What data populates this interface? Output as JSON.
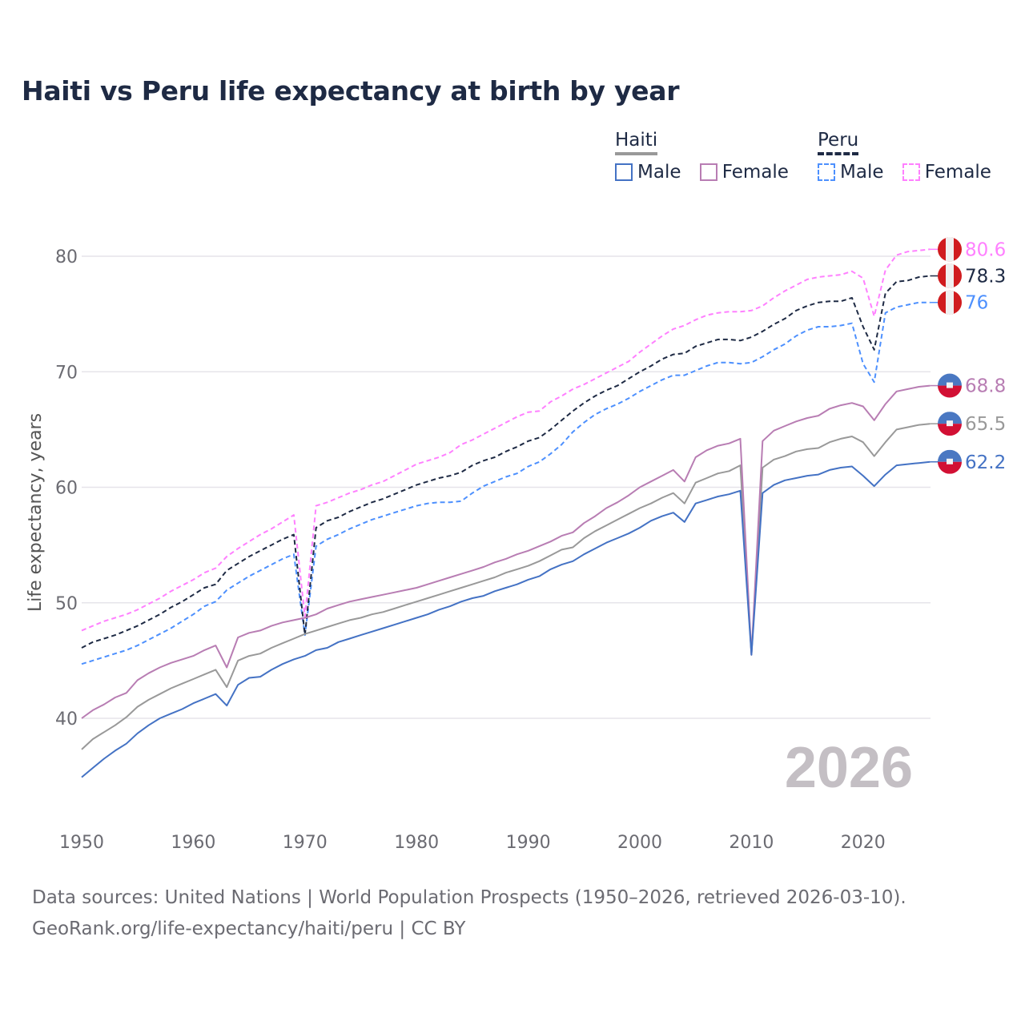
{
  "chart_data": {
    "type": "line",
    "title": "Haiti vs Peru life expectancy at birth by year",
    "xlabel": "",
    "ylabel": "Life expectancy, years",
    "xlim": [
      1950,
      2026
    ],
    "ylim": [
      34,
      82
    ],
    "x_ticks": [
      1950,
      1960,
      1970,
      1980,
      1990,
      2000,
      2010,
      2020
    ],
    "y_ticks": [
      40,
      50,
      60,
      70,
      80
    ],
    "grid": true,
    "legend_position": "top-right",
    "year_watermark": "2026",
    "x_start": 1950,
    "legend": {
      "groups": [
        {
          "name": "Haiti",
          "color": "#999999",
          "dashed": false,
          "items": [
            {
              "label": "Male",
              "color": "#4472c4"
            },
            {
              "label": "Female",
              "color": "#b87db3"
            }
          ]
        },
        {
          "name": "Peru",
          "color": "#1e2a44",
          "dashed": true,
          "items": [
            {
              "label": "Male",
              "color": "#4d90fe"
            },
            {
              "label": "Female",
              "color": "#ff80ff"
            }
          ]
        }
      ]
    },
    "series": [
      {
        "name": "Haiti Male",
        "country": "haiti",
        "color": "#4472c4",
        "dashed": false,
        "end_label": "62.2",
        "values": [
          34.9,
          35.7,
          36.5,
          37.2,
          37.8,
          38.7,
          39.4,
          40.0,
          40.4,
          40.8,
          41.3,
          41.7,
          42.1,
          41.1,
          42.9,
          43.5,
          43.6,
          44.2,
          44.7,
          45.1,
          45.4,
          45.9,
          46.1,
          46.6,
          46.9,
          47.2,
          47.5,
          47.8,
          48.1,
          48.4,
          48.7,
          49.0,
          49.4,
          49.7,
          50.1,
          50.4,
          50.6,
          51.0,
          51.3,
          51.6,
          52.0,
          52.3,
          52.9,
          53.3,
          53.6,
          54.2,
          54.7,
          55.2,
          55.6,
          56.0,
          56.5,
          57.1,
          57.5,
          57.8,
          57.0,
          58.6,
          58.9,
          59.2,
          59.4,
          59.7,
          45.5,
          59.5,
          60.2,
          60.6,
          60.8,
          61.0,
          61.1,
          61.5,
          61.7,
          61.8,
          61.0,
          60.1,
          61.1,
          61.9,
          62.0,
          62.1,
          62.2
        ]
      },
      {
        "name": "Haiti Female",
        "country": "haiti",
        "color": "#b87db3",
        "dashed": false,
        "end_label": "68.8",
        "values": [
          40.0,
          40.7,
          41.2,
          41.8,
          42.2,
          43.3,
          43.9,
          44.4,
          44.8,
          45.1,
          45.4,
          45.9,
          46.3,
          44.4,
          47.0,
          47.4,
          47.6,
          48.0,
          48.3,
          48.5,
          48.7,
          49.0,
          49.5,
          49.8,
          50.1,
          50.3,
          50.5,
          50.7,
          50.9,
          51.1,
          51.3,
          51.6,
          51.9,
          52.2,
          52.5,
          52.8,
          53.1,
          53.5,
          53.8,
          54.2,
          54.5,
          54.9,
          55.3,
          55.8,
          56.1,
          56.9,
          57.5,
          58.2,
          58.7,
          59.3,
          60.0,
          60.5,
          61.0,
          61.5,
          60.5,
          62.6,
          63.2,
          63.6,
          63.8,
          64.2,
          45.5,
          64.0,
          64.9,
          65.3,
          65.7,
          66.0,
          66.2,
          66.8,
          67.1,
          67.3,
          67.0,
          65.8,
          67.2,
          68.3,
          68.5,
          68.7,
          68.8
        ]
      },
      {
        "name": "Haiti",
        "country": "haiti",
        "color": "#999999",
        "dashed": false,
        "end_label": "65.5",
        "values": [
          37.3,
          38.2,
          38.8,
          39.4,
          40.1,
          41.0,
          41.6,
          42.1,
          42.6,
          43.0,
          43.4,
          43.8,
          44.2,
          42.7,
          45.0,
          45.4,
          45.6,
          46.1,
          46.5,
          46.9,
          47.3,
          47.6,
          47.9,
          48.2,
          48.5,
          48.7,
          49.0,
          49.2,
          49.5,
          49.8,
          50.1,
          50.4,
          50.7,
          51.0,
          51.3,
          51.6,
          51.9,
          52.2,
          52.6,
          52.9,
          53.2,
          53.6,
          54.1,
          54.6,
          54.8,
          55.6,
          56.2,
          56.7,
          57.2,
          57.7,
          58.2,
          58.6,
          59.1,
          59.5,
          58.6,
          60.4,
          60.8,
          61.2,
          61.4,
          61.9,
          45.5,
          61.7,
          62.4,
          62.7,
          63.1,
          63.3,
          63.4,
          63.9,
          64.2,
          64.4,
          63.9,
          62.7,
          63.9,
          65.0,
          65.2,
          65.4,
          65.5
        ]
      },
      {
        "name": "Peru Male",
        "country": "peru",
        "color": "#4d90fe",
        "dashed": true,
        "end_label": "76",
        "values": [
          44.7,
          45.0,
          45.3,
          45.6,
          45.9,
          46.3,
          46.8,
          47.3,
          47.8,
          48.4,
          49.0,
          49.7,
          50.1,
          51.1,
          51.7,
          52.3,
          52.8,
          53.3,
          53.8,
          54.2,
          47.2,
          54.9,
          55.5,
          55.9,
          56.4,
          56.8,
          57.2,
          57.5,
          57.8,
          58.1,
          58.4,
          58.6,
          58.7,
          58.7,
          58.8,
          59.5,
          60.1,
          60.5,
          60.9,
          61.2,
          61.8,
          62.2,
          62.9,
          63.7,
          64.8,
          65.6,
          66.3,
          66.8,
          67.2,
          67.7,
          68.3,
          68.8,
          69.3,
          69.7,
          69.7,
          70.1,
          70.5,
          70.8,
          70.8,
          70.7,
          70.8,
          71.3,
          71.9,
          72.4,
          73.1,
          73.6,
          73.9,
          73.9,
          74.0,
          74.2,
          70.7,
          69.1,
          75.1,
          75.6,
          75.8,
          76.0,
          76.0
        ]
      },
      {
        "name": "Peru",
        "country": "peru",
        "color": "#1e2a44",
        "dashed": true,
        "end_label": "78.3",
        "values": [
          46.1,
          46.6,
          46.9,
          47.2,
          47.6,
          48.0,
          48.5,
          49.0,
          49.6,
          50.1,
          50.7,
          51.3,
          51.6,
          52.8,
          53.4,
          54.0,
          54.5,
          55.0,
          55.5,
          55.9,
          47.2,
          56.5,
          57.1,
          57.4,
          57.9,
          58.3,
          58.7,
          59.0,
          59.4,
          59.8,
          60.2,
          60.5,
          60.8,
          61.0,
          61.3,
          61.9,
          62.3,
          62.6,
          63.1,
          63.5,
          64.0,
          64.3,
          65.0,
          65.8,
          66.6,
          67.3,
          67.9,
          68.4,
          68.8,
          69.4,
          70.0,
          70.5,
          71.1,
          71.5,
          71.6,
          72.2,
          72.5,
          72.8,
          72.8,
          72.7,
          73.0,
          73.5,
          74.1,
          74.6,
          75.3,
          75.7,
          76.0,
          76.1,
          76.1,
          76.4,
          73.9,
          71.9,
          76.8,
          77.8,
          77.9,
          78.2,
          78.3
        ]
      },
      {
        "name": "Peru Female",
        "country": "peru",
        "color": "#ff80ff",
        "dashed": true,
        "end_label": "80.6",
        "values": [
          47.6,
          48.0,
          48.4,
          48.7,
          49.0,
          49.4,
          49.9,
          50.4,
          51.0,
          51.5,
          52.0,
          52.6,
          53.0,
          54.0,
          54.7,
          55.3,
          55.9,
          56.4,
          57.0,
          57.6,
          48.8,
          58.4,
          58.7,
          59.1,
          59.5,
          59.8,
          60.2,
          60.5,
          61.0,
          61.5,
          62.0,
          62.3,
          62.6,
          63.0,
          63.7,
          64.1,
          64.6,
          65.1,
          65.6,
          66.1,
          66.5,
          66.6,
          67.4,
          67.9,
          68.5,
          68.9,
          69.4,
          69.9,
          70.4,
          70.9,
          71.7,
          72.4,
          73.1,
          73.7,
          74.0,
          74.5,
          74.9,
          75.1,
          75.2,
          75.2,
          75.3,
          75.7,
          76.4,
          77.0,
          77.5,
          78.0,
          78.2,
          78.3,
          78.4,
          78.7,
          78.1,
          74.8,
          78.8,
          80.1,
          80.4,
          80.5,
          80.6
        ]
      }
    ]
  },
  "footer": {
    "source": "Data sources: United Nations | World Population Prospects (1950–2026, retrieved 2026-03-10).",
    "credit": "GeoRank.org/life-expectancy/haiti/peru | CC BY"
  }
}
